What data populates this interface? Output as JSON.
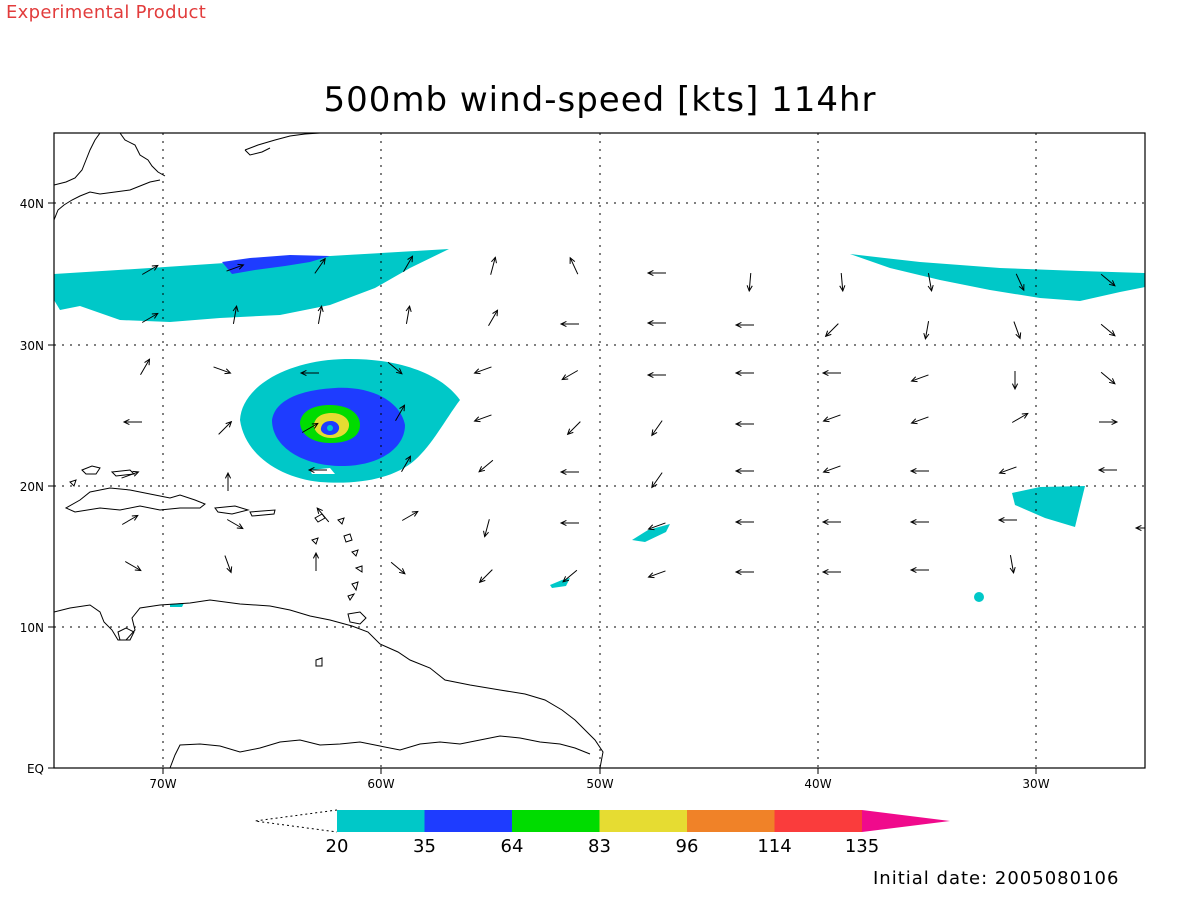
{
  "banner": "Experimental Product",
  "title": "500mb wind-speed [kts] 114hr",
  "initial_date": "Initial date: 2005080106",
  "axes": {
    "lon_labels": [
      "70W",
      "60W",
      "50W",
      "40W",
      "30W"
    ],
    "lat_labels": [
      "40N",
      "30N",
      "20N",
      "10N",
      "EQ"
    ]
  },
  "colorbar": {
    "levels": [
      "20",
      "35",
      "64",
      "83",
      "96",
      "114",
      "135"
    ],
    "colors": [
      "#00c8c8",
      "#1e3cff",
      "#00dc00",
      "#e6dc32",
      "#f08228",
      "#fa3c3c",
      "#f00a8c"
    ]
  },
  "map_colors": {
    "shade_20": "#00c8c8",
    "shade_35": "#1e3cff",
    "shade_64": "#00dc00",
    "shade_83": "#e6dc32",
    "grid": "#000000",
    "coast": "#000000"
  }
}
